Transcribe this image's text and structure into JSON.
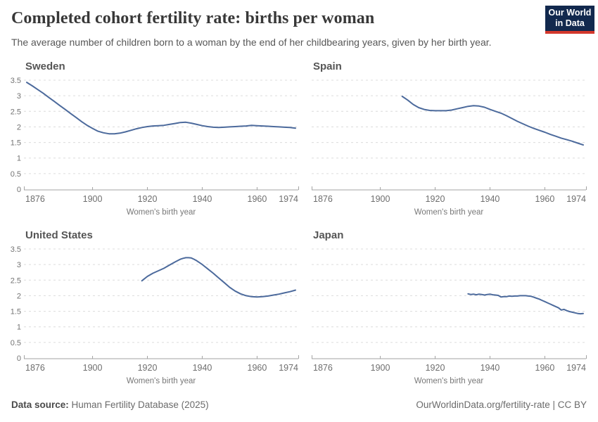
{
  "header": {
    "title": "Completed cohort fertility rate: births per woman",
    "subtitle": "The average number of children born to a woman by the end of her childbearing years, given by her birth year.",
    "logo": {
      "line1": "Our World",
      "line2": "in Data",
      "bg_color": "#12294e",
      "accent_color": "#d3372c"
    }
  },
  "footer": {
    "source_label": "Data source:",
    "source_value": " Human Fertility Database (2025)",
    "right_text": "OurWorldinData.org/fertility-rate | CC BY"
  },
  "chart_data": {
    "type": "line",
    "layout": "small-multiples-2x2",
    "xlabel": "Women's birth year",
    "x_ticks": [
      1876,
      1900,
      1920,
      1940,
      1960,
      1974
    ],
    "y_ticks": [
      0,
      0.5,
      1,
      1.5,
      2,
      2.5,
      3,
      3.5
    ],
    "xlim": [
      1876,
      1974
    ],
    "ylim": [
      0,
      3.5
    ],
    "grid": "horizontal-dashed",
    "line_color": "#4C6A9C",
    "grid_color": "#dcdcdc",
    "axis_color": "#a3a3a3",
    "tick_label_color": "#6e6e6e",
    "facet_title_color": "#555555",
    "series": [
      {
        "name": "Sweden",
        "points": [
          [
            1876,
            3.43
          ],
          [
            1878,
            3.32
          ],
          [
            1880,
            3.2
          ],
          [
            1882,
            3.08
          ],
          [
            1884,
            2.95
          ],
          [
            1886,
            2.82
          ],
          [
            1888,
            2.69
          ],
          [
            1890,
            2.56
          ],
          [
            1892,
            2.43
          ],
          [
            1894,
            2.3
          ],
          [
            1896,
            2.17
          ],
          [
            1898,
            2.05
          ],
          [
            1900,
            1.95
          ],
          [
            1902,
            1.86
          ],
          [
            1904,
            1.81
          ],
          [
            1906,
            1.78
          ],
          [
            1908,
            1.78
          ],
          [
            1910,
            1.8
          ],
          [
            1912,
            1.84
          ],
          [
            1914,
            1.89
          ],
          [
            1916,
            1.94
          ],
          [
            1918,
            1.98
          ],
          [
            1920,
            2.01
          ],
          [
            1922,
            2.03
          ],
          [
            1924,
            2.04
          ],
          [
            1926,
            2.05
          ],
          [
            1928,
            2.08
          ],
          [
            1930,
            2.11
          ],
          [
            1932,
            2.14
          ],
          [
            1934,
            2.15
          ],
          [
            1936,
            2.12
          ],
          [
            1938,
            2.08
          ],
          [
            1940,
            2.04
          ],
          [
            1942,
            2.01
          ],
          [
            1944,
            1.99
          ],
          [
            1946,
            1.98
          ],
          [
            1948,
            1.99
          ],
          [
            1950,
            2.0
          ],
          [
            1952,
            2.01
          ],
          [
            1954,
            2.02
          ],
          [
            1956,
            2.03
          ],
          [
            1958,
            2.05
          ],
          [
            1960,
            2.04
          ],
          [
            1962,
            2.03
          ],
          [
            1964,
            2.02
          ],
          [
            1966,
            2.01
          ],
          [
            1968,
            2.0
          ],
          [
            1970,
            1.99
          ],
          [
            1972,
            1.98
          ],
          [
            1974,
            1.96
          ]
        ]
      },
      {
        "name": "Spain",
        "points": [
          [
            1908,
            2.98
          ],
          [
            1910,
            2.86
          ],
          [
            1912,
            2.72
          ],
          [
            1914,
            2.62
          ],
          [
            1916,
            2.56
          ],
          [
            1918,
            2.53
          ],
          [
            1920,
            2.52
          ],
          [
            1922,
            2.52
          ],
          [
            1924,
            2.52
          ],
          [
            1926,
            2.54
          ],
          [
            1928,
            2.58
          ],
          [
            1930,
            2.62
          ],
          [
            1932,
            2.66
          ],
          [
            1934,
            2.68
          ],
          [
            1936,
            2.67
          ],
          [
            1938,
            2.63
          ],
          [
            1940,
            2.56
          ],
          [
            1942,
            2.5
          ],
          [
            1944,
            2.44
          ],
          [
            1946,
            2.36
          ],
          [
            1948,
            2.27
          ],
          [
            1950,
            2.18
          ],
          [
            1952,
            2.1
          ],
          [
            1954,
            2.02
          ],
          [
            1956,
            1.95
          ],
          [
            1958,
            1.89
          ],
          [
            1960,
            1.83
          ],
          [
            1962,
            1.76
          ],
          [
            1964,
            1.7
          ],
          [
            1966,
            1.64
          ],
          [
            1968,
            1.59
          ],
          [
            1970,
            1.54
          ],
          [
            1972,
            1.48
          ],
          [
            1974,
            1.42
          ]
        ]
      },
      {
        "name": "United States",
        "points": [
          [
            1918,
            2.48
          ],
          [
            1920,
            2.62
          ],
          [
            1922,
            2.72
          ],
          [
            1924,
            2.8
          ],
          [
            1926,
            2.88
          ],
          [
            1928,
            2.98
          ],
          [
            1930,
            3.08
          ],
          [
            1932,
            3.17
          ],
          [
            1933,
            3.2
          ],
          [
            1934,
            3.22
          ],
          [
            1935,
            3.22
          ],
          [
            1936,
            3.21
          ],
          [
            1937,
            3.17
          ],
          [
            1938,
            3.12
          ],
          [
            1940,
            3.0
          ],
          [
            1942,
            2.86
          ],
          [
            1944,
            2.72
          ],
          [
            1946,
            2.57
          ],
          [
            1948,
            2.42
          ],
          [
            1950,
            2.27
          ],
          [
            1952,
            2.15
          ],
          [
            1954,
            2.06
          ],
          [
            1956,
            2.0
          ],
          [
            1958,
            1.97
          ],
          [
            1960,
            1.96
          ],
          [
            1962,
            1.97
          ],
          [
            1964,
            1.99
          ],
          [
            1966,
            2.02
          ],
          [
            1968,
            2.05
          ],
          [
            1970,
            2.09
          ],
          [
            1972,
            2.13
          ],
          [
            1974,
            2.18
          ]
        ]
      },
      {
        "name": "Japan",
        "points": [
          [
            1932,
            2.06
          ],
          [
            1933,
            2.04
          ],
          [
            1934,
            2.05
          ],
          [
            1935,
            2.03
          ],
          [
            1936,
            2.05
          ],
          [
            1937,
            2.04
          ],
          [
            1938,
            2.02
          ],
          [
            1939,
            2.04
          ],
          [
            1940,
            2.05
          ],
          [
            1941,
            2.03
          ],
          [
            1942,
            2.02
          ],
          [
            1943,
            2.01
          ],
          [
            1944,
            1.96
          ],
          [
            1945,
            1.97
          ],
          [
            1946,
            1.97
          ],
          [
            1947,
            1.99
          ],
          [
            1948,
            1.98
          ],
          [
            1949,
            1.99
          ],
          [
            1950,
            1.99
          ],
          [
            1951,
            2.0
          ],
          [
            1952,
            2.0
          ],
          [
            1953,
            2.0
          ],
          [
            1954,
            1.99
          ],
          [
            1955,
            1.98
          ],
          [
            1956,
            1.95
          ],
          [
            1957,
            1.92
          ],
          [
            1958,
            1.89
          ],
          [
            1959,
            1.85
          ],
          [
            1960,
            1.81
          ],
          [
            1961,
            1.77
          ],
          [
            1962,
            1.73
          ],
          [
            1963,
            1.69
          ],
          [
            1964,
            1.65
          ],
          [
            1965,
            1.61
          ],
          [
            1966,
            1.54
          ],
          [
            1967,
            1.56
          ],
          [
            1968,
            1.52
          ],
          [
            1969,
            1.49
          ],
          [
            1970,
            1.47
          ],
          [
            1971,
            1.45
          ],
          [
            1972,
            1.43
          ],
          [
            1973,
            1.42
          ],
          [
            1974,
            1.43
          ]
        ]
      }
    ]
  }
}
